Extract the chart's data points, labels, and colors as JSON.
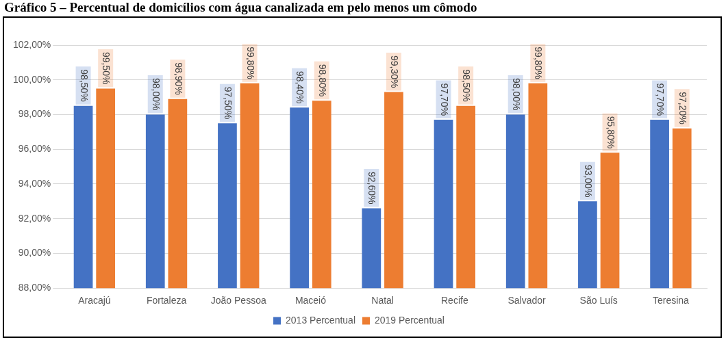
{
  "chart_data": {
    "type": "bar",
    "title": "Gráfico 5 – Percentual de domicílios com água canalizada em pelo menos um cômodo",
    "categories": [
      "Aracajú",
      "Fortaleza",
      "João Pessoa",
      "Maceió",
      "Natal",
      "Recife",
      "Salvador",
      "São Luís",
      "Teresina"
    ],
    "series": [
      {
        "name": "2013 Percentual",
        "color": "#4472c4",
        "values": [
          98.5,
          98.0,
          97.5,
          98.4,
          92.6,
          97.7,
          98.0,
          93.0,
          97.7
        ],
        "value_labels": [
          "98,50%",
          "98,00%",
          "97,50%",
          "98,40%",
          "92,60%",
          "97,70%",
          "98,00%",
          "93,00%",
          "97,70%"
        ]
      },
      {
        "name": "2019 Percentual",
        "color": "#ed7d31",
        "values": [
          99.5,
          98.9,
          99.8,
          98.8,
          99.3,
          98.5,
          99.8,
          95.8,
          97.2
        ],
        "value_labels": [
          "99,50%",
          "98,90%",
          "99,80%",
          "98,80%",
          "99,30%",
          "98,50%",
          "99,80%",
          "95,80%",
          "97,20%"
        ]
      }
    ],
    "ylim": [
      88,
      102
    ],
    "yticks": [
      {
        "value": 88,
        "label": "88,00%"
      },
      {
        "value": 90,
        "label": "90,00%"
      },
      {
        "value": 92,
        "label": "92,00%"
      },
      {
        "value": 94,
        "label": "94,00%"
      },
      {
        "value": 96,
        "label": "96,00%"
      },
      {
        "value": 98,
        "label": "98,00%"
      },
      {
        "value": 100,
        "label": "100,00%"
      },
      {
        "value": 102,
        "label": "102,00%"
      }
    ],
    "grid": "y",
    "legend": "bottom"
  }
}
